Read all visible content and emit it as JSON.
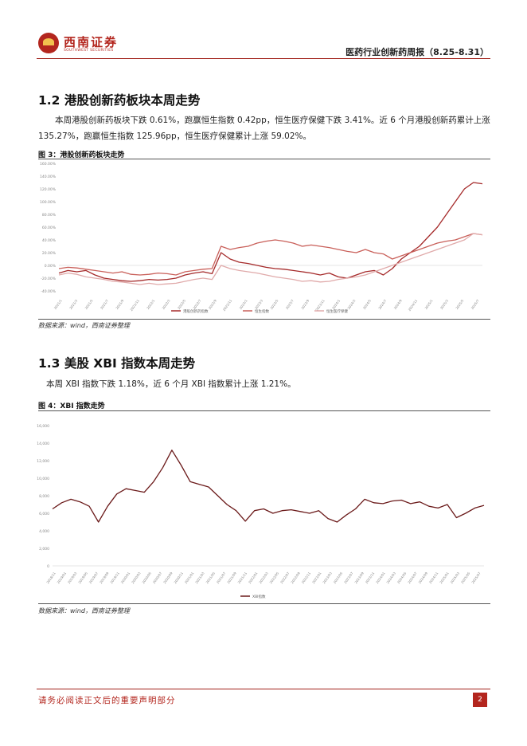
{
  "header": {
    "logo_cn": "西南证券",
    "logo_en": "SOUTHWEST SECURITIES",
    "report_title": "医药行业创新药周报（8.25-8.31）"
  },
  "section_hk": {
    "title": "1.2 港股创新药板块本周走势",
    "paragraph": "本周港股创新药板块下跌 0.61%，跑赢恒生指数 0.42pp，恒生医疗保健下跌 3.41%。近 6 个月港股创新药累计上涨 135.27%，跑赢恒生指数 125.96pp，恒生医疗保健累计上涨 59.02%。",
    "figure_caption": "图 3：港股创新药板块走势",
    "source": "数据来源：wind，西南证券整理"
  },
  "section_us": {
    "title": "1.3 美股 XBI 指数本周走势",
    "paragraph": "本周 XBI 指数下跌 1.18%，近 6 个月 XBI 指数累计上涨 1.21%。",
    "figure_caption": "图 4：XBI 指数走势",
    "source": "数据来源：wind，西南证券整理"
  },
  "footer": {
    "disclaimer": "请务必阅读正文后的重要声明部分",
    "page_number": "2"
  },
  "chart_data": [
    {
      "type": "line",
      "title": "图 3：港股创新药板块走势",
      "y_tick_labels": [
        "160.00%",
        "140.00%",
        "120.00%",
        "100.00%",
        "80.00%",
        "60.00%",
        "40.00%",
        "20.00%",
        "0.00%",
        "-20.00%",
        "-40.00%"
      ],
      "ylim": [
        -40,
        160
      ],
      "x_tick_labels": [
        "2021/1",
        "2021/3",
        "2021/5",
        "2021/7",
        "2021/9",
        "2021/11",
        "2022/1",
        "2022/3",
        "2022/5",
        "2022/7",
        "2022/9",
        "2022/11",
        "2023/1",
        "2023/3",
        "2023/5",
        "2023/7",
        "2023/9",
        "2023/11",
        "2024/1",
        "2024/3",
        "2024/5",
        "2024/7",
        "2024/9",
        "2024/11",
        "2025/1",
        "2025/3",
        "2025/5",
        "2025/7"
      ],
      "legend": [
        "港股创新药指数",
        "恒生指数",
        "恒生医疗保健"
      ],
      "series": [
        {
          "name": "港股创新药指数",
          "color": "#a52a2a",
          "values": [
            -12,
            -8,
            -10,
            -8,
            -15,
            -20,
            -22,
            -24,
            -25,
            -24,
            -22,
            -23,
            -22,
            -20,
            -15,
            -12,
            -10,
            -13,
            20,
            10,
            5,
            3,
            0,
            -3,
            -5,
            -6,
            -8,
            -10,
            -12,
            -15,
            -12,
            -18,
            -20,
            -15,
            -10,
            -8,
            -15,
            -5,
            10,
            20,
            30,
            45,
            60,
            80,
            100,
            120,
            130,
            128
          ]
        },
        {
          "name": "恒生指数",
          "color": "#c9605a",
          "values": [
            -5,
            -3,
            -4,
            -6,
            -8,
            -10,
            -12,
            -10,
            -14,
            -15,
            -14,
            -12,
            -13,
            -15,
            -10,
            -8,
            -6,
            -5,
            30,
            25,
            28,
            30,
            35,
            38,
            40,
            38,
            35,
            30,
            32,
            30,
            28,
            25,
            22,
            20,
            25,
            20,
            18,
            10,
            15,
            20,
            25,
            30,
            35,
            38,
            40,
            45,
            50,
            48
          ]
        },
        {
          "name": "恒生医疗保健",
          "color": "#e0aaaa",
          "values": [
            -15,
            -12,
            -14,
            -18,
            -20,
            -22,
            -25,
            -26,
            -28,
            -30,
            -28,
            -30,
            -29,
            -28,
            -25,
            -22,
            -20,
            -22,
            0,
            -5,
            -8,
            -10,
            -12,
            -15,
            -18,
            -20,
            -22,
            -25,
            -24,
            -26,
            -25,
            -22,
            -20,
            -18,
            -15,
            -10,
            -5,
            0,
            5,
            10,
            15,
            20,
            25,
            30,
            35,
            40,
            50,
            48
          ]
        }
      ]
    },
    {
      "type": "line",
      "title": "图 4：XBI 指数走势",
      "y_tick_labels": [
        "16,000",
        "14,000",
        "12,000",
        "10,000",
        "8,000",
        "6,000",
        "4,000",
        "2,000",
        "0"
      ],
      "ylim": [
        0,
        16000
      ],
      "x_tick_labels": [
        "2018/11",
        "2019/01",
        "2019/03",
        "2019/05",
        "2019/07",
        "2019/09",
        "2019/11",
        "2020/01",
        "2020/03",
        "2020/05",
        "2020/07",
        "2020/09",
        "2020/11",
        "2021/01",
        "2021/03",
        "2021/05",
        "2021/07",
        "2021/09",
        "2021/11",
        "2022/01",
        "2022/03",
        "2022/05",
        "2022/07",
        "2022/09",
        "2022/11",
        "2023/01",
        "2023/03",
        "2023/05",
        "2023/07",
        "2023/09",
        "2023/11",
        "2024/01",
        "2024/03",
        "2024/05",
        "2024/07",
        "2024/09",
        "2024/11",
        "2025/01",
        "2025/03",
        "2025/05",
        "2025/07"
      ],
      "legend": [
        "XBI指数"
      ],
      "series": [
        {
          "name": "XBI指数",
          "color": "#6b1a1a",
          "values": [
            6500,
            7200,
            7600,
            7300,
            6800,
            5000,
            6800,
            8200,
            8800,
            8600,
            8400,
            9600,
            11200,
            13200,
            11500,
            9600,
            9300,
            9000,
            8000,
            7000,
            6300,
            5100,
            6300,
            6500,
            6000,
            6300,
            6400,
            6200,
            6000,
            6300,
            5400,
            5000,
            5800,
            6500,
            7600,
            7200,
            7100,
            7400,
            7500,
            7100,
            7300,
            6800,
            6600,
            7000,
            5500,
            6000,
            6600,
            6900
          ]
        }
      ]
    }
  ]
}
